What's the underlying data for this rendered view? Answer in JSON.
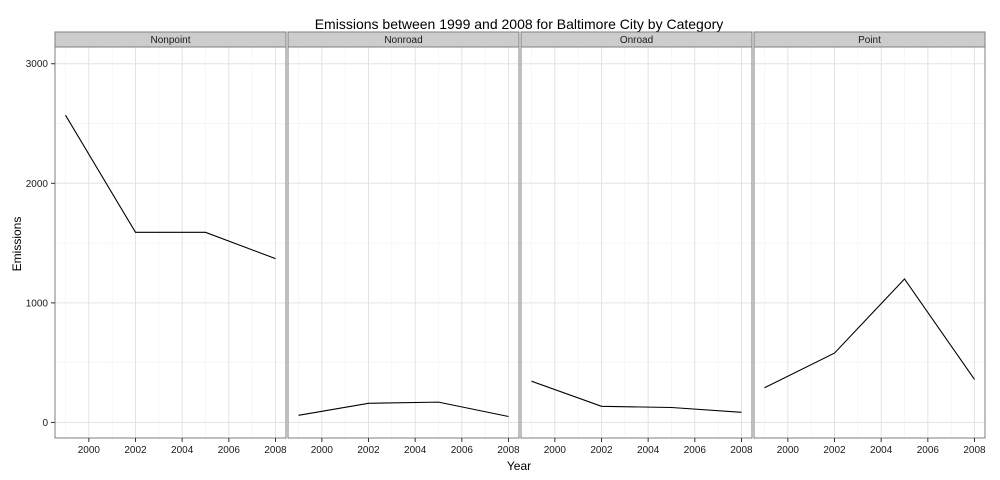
{
  "chart_data": {
    "type": "line",
    "title": "Emissions between 1999 and 2008 for Baltimore City by Category",
    "xlabel": "Year",
    "ylabel": "Emissions",
    "x_ticks": [
      2000,
      2002,
      2004,
      2006,
      2008
    ],
    "y_ticks": [
      0,
      1000,
      2000,
      3000
    ],
    "xlim": [
      1998.55,
      2008.45
    ],
    "ylim": [
      -130,
      3140
    ],
    "grid": true,
    "facets": [
      {
        "name": "Nonpoint",
        "x": [
          1999,
          2002,
          2005,
          2008
        ],
        "y": [
          2570,
          1590,
          1590,
          1370
        ]
      },
      {
        "name": "Nonroad",
        "x": [
          1999,
          2002,
          2005,
          2008
        ],
        "y": [
          60,
          160,
          170,
          50
        ]
      },
      {
        "name": "Onroad",
        "x": [
          1999,
          2002,
          2005,
          2008
        ],
        "y": [
          345,
          135,
          125,
          85
        ]
      },
      {
        "name": "Point",
        "x": [
          1999,
          2002,
          2005,
          2008
        ],
        "y": [
          290,
          580,
          1200,
          360
        ]
      }
    ]
  }
}
